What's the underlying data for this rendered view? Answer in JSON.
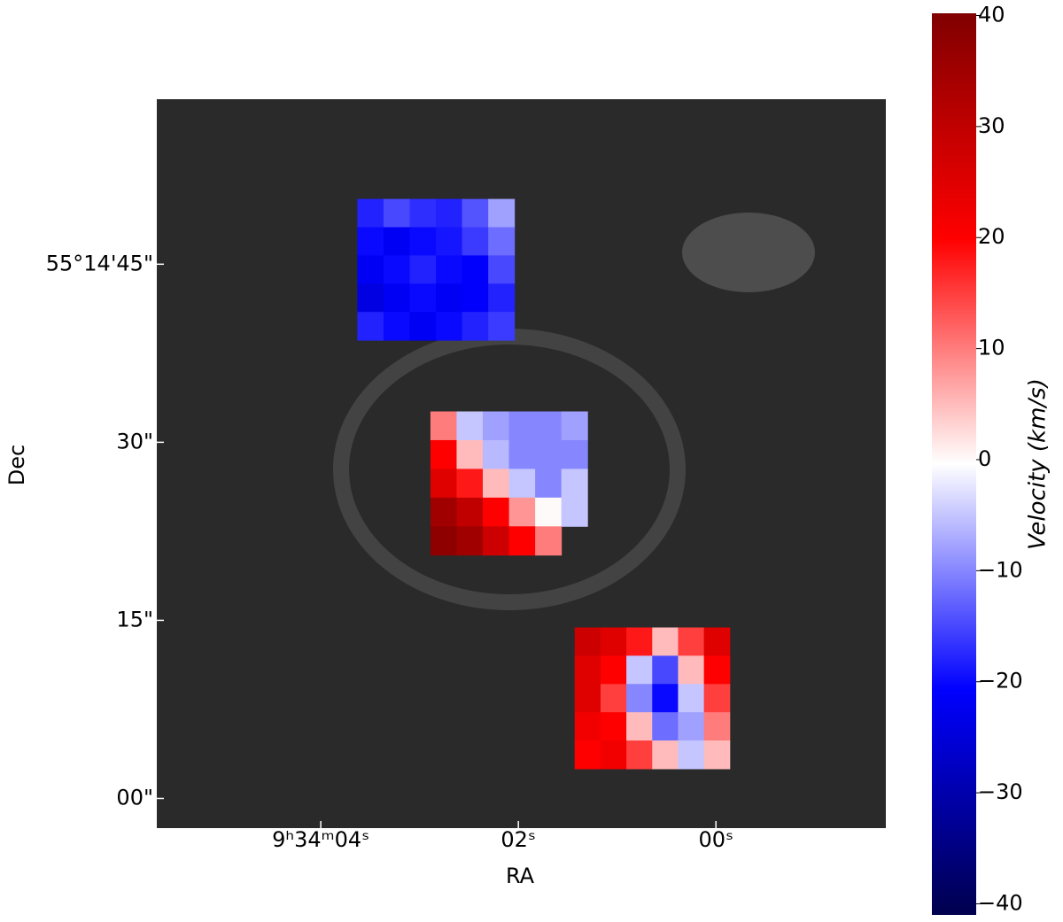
{
  "chart_data": {
    "type": "image",
    "xlabel": "RA",
    "ylabel": "Dec",
    "xlim": [
      5.66,
      -1.72
    ],
    "xticks": [
      {
        "value": 4,
        "label": "9ʰ34ᵐ04ˢ"
      },
      {
        "value": 2,
        "label": "02ˢ"
      },
      {
        "value": 0,
        "label": "00ˢ"
      }
    ],
    "ylim": [
      -2.5,
      58.9
    ],
    "yticks": [
      {
        "value": 45,
        "label": "55°14'45\""
      },
      {
        "value": 30,
        "label": "30\""
      },
      {
        "value": 15,
        "label": "15\""
      },
      {
        "value": 0,
        "label": "00\""
      }
    ],
    "colorbar": {
      "label": "Velocity (km/s)",
      "lim": [
        -41,
        40.2
      ],
      "ticks": [
        {
          "value": 40,
          "label": "40"
        },
        {
          "value": 30,
          "label": "30"
        },
        {
          "value": 20,
          "label": "20"
        },
        {
          "value": 10,
          "label": "10"
        },
        {
          "value": 0,
          "label": "0"
        },
        {
          "value": -10,
          "label": "−10"
        },
        {
          "value": -20,
          "label": "−20"
        },
        {
          "value": -30,
          "label": "−30"
        },
        {
          "value": -40,
          "label": "−40"
        }
      ]
    },
    "fields": [
      {
        "xlim": [
          3.63,
          2.04
        ],
        "ylim": [
          38.6,
          50.5
        ],
        "values": [
          [
            -18,
            -15,
            -17,
            -18,
            -14,
            -8
          ],
          [
            -20,
            -22,
            -20,
            -19,
            -16,
            -12
          ],
          [
            -22,
            -20,
            -18,
            -20,
            -21,
            -15
          ],
          [
            -24,
            -22,
            -20,
            -22,
            -21,
            -18
          ],
          [
            -18,
            -20,
            -22,
            -20,
            -18,
            -16
          ]
        ]
      },
      {
        "xlim": [
          2.89,
          1.3
        ],
        "ylim": [
          20.5,
          32.6
        ],
        "values": [
          [
            10,
            -5,
            -8,
            -10,
            -10,
            -8
          ],
          [
            20,
            5,
            -6,
            -10,
            -10,
            -10
          ],
          [
            25,
            18,
            5,
            -5,
            -10,
            -5
          ],
          [
            35,
            30,
            20,
            8,
            0,
            -5
          ],
          [
            38,
            35,
            28,
            20,
            10,
            null
          ]
        ]
      },
      {
        "xlim": [
          1.43,
          -0.14
        ],
        "ylim": [
          2.5,
          14.4
        ],
        "values": [
          [
            28,
            25,
            18,
            5,
            15,
            25
          ],
          [
            25,
            20,
            -5,
            -15,
            5,
            20
          ],
          [
            25,
            15,
            -10,
            -20,
            -5,
            15
          ],
          [
            22,
            20,
            5,
            -12,
            -8,
            10
          ],
          [
            20,
            22,
            15,
            5,
            -5,
            5
          ]
        ]
      }
    ]
  }
}
